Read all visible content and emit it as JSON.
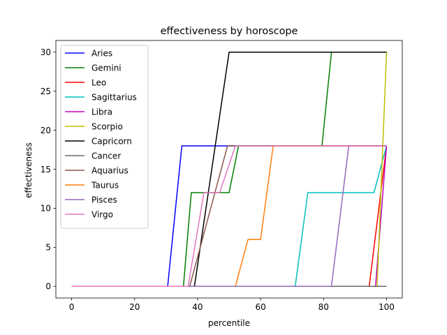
{
  "chart_data": {
    "type": "line",
    "title": "effectiveness by horoscope",
    "xlabel": "percentile",
    "ylabel": "effectiveness",
    "xlim": [
      -5,
      105
    ],
    "ylim": [
      -1.5,
      31.5
    ],
    "xticks": [
      0,
      20,
      40,
      60,
      80,
      100
    ],
    "yticks": [
      0,
      5,
      10,
      15,
      20,
      25,
      30
    ],
    "grid": false,
    "legend_position": "upper-left",
    "series": [
      {
        "name": "Aries",
        "color": "#0000ff",
        "x": [
          0,
          30.5,
          35,
          100
        ],
        "y": [
          0,
          0,
          18,
          18
        ]
      },
      {
        "name": "Gemini",
        "color": "#008000",
        "x": [
          0,
          35.5,
          38,
          50,
          53,
          79.5,
          82.5,
          100
        ],
        "y": [
          0,
          0,
          12,
          12,
          18,
          18,
          30,
          30
        ]
      },
      {
        "name": "Leo",
        "color": "#ff0000",
        "x": [
          0,
          94.5,
          100
        ],
        "y": [
          0,
          0,
          18
        ]
      },
      {
        "name": "Sagittarius",
        "color": "#00bfbf",
        "x": [
          0,
          71,
          75,
          96,
          100
        ],
        "y": [
          0,
          0,
          12,
          12,
          18
        ]
      },
      {
        "name": "Libra",
        "color": "#bf00bf",
        "x": [
          0,
          96.5,
          100
        ],
        "y": [
          0,
          0,
          18
        ]
      },
      {
        "name": "Scorpio",
        "color": "#bfbf00",
        "x": [
          0,
          97,
          100
        ],
        "y": [
          0,
          0,
          30
        ]
      },
      {
        "name": "Capricorn",
        "color": "#000000",
        "x": [
          0,
          39,
          50,
          100
        ],
        "y": [
          0,
          0,
          30,
          30
        ]
      },
      {
        "name": "Cancer",
        "color": "#696969",
        "x": [
          0,
          100
        ],
        "y": [
          0,
          0
        ]
      },
      {
        "name": "Aquarius",
        "color": "#8c564b",
        "x": [
          0,
          37.5,
          49.5,
          100
        ],
        "y": [
          0,
          0,
          18,
          18
        ]
      },
      {
        "name": "Taurus",
        "color": "#ff7f0e",
        "x": [
          0,
          52,
          56,
          60,
          64,
          100
        ],
        "y": [
          0,
          0,
          6,
          6,
          18,
          18
        ]
      },
      {
        "name": "Pisces",
        "color": "#9467bd",
        "x": [
          0,
          82.5,
          88,
          100
        ],
        "y": [
          0,
          0,
          18,
          18
        ]
      },
      {
        "name": "Virgo",
        "color": "#e377c2",
        "x": [
          0,
          37,
          42,
          47,
          52,
          100
        ],
        "y": [
          0,
          0,
          12,
          12,
          18,
          18
        ]
      }
    ]
  }
}
